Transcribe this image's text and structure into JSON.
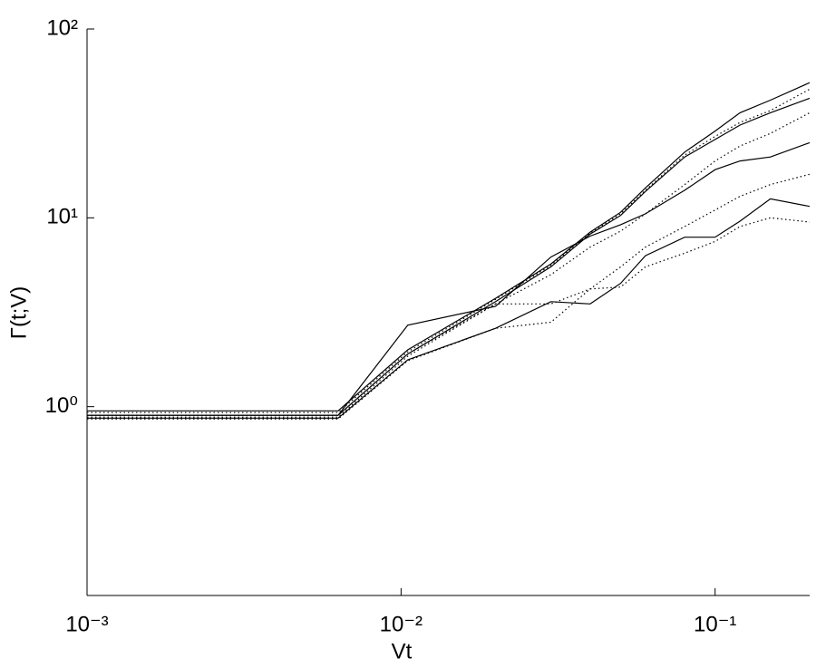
{
  "chart_data": {
    "type": "line",
    "x_label": "Vt",
    "y_label": "Γ(t;V)",
    "xscale": "log",
    "yscale": "log",
    "xlim": [
      0.001,
      0.2
    ],
    "ylim": [
      0.1,
      100
    ],
    "xticks": [
      {
        "value": 0.001,
        "label": "10⁻³"
      },
      {
        "value": 0.01,
        "label": "10⁻²"
      },
      {
        "value": 0.1,
        "label": "10⁻¹"
      }
    ],
    "yticks": [
      {
        "value": 1,
        "label": "10⁰"
      },
      {
        "value": 10,
        "label": "10¹"
      },
      {
        "value": 100,
        "label": "10²"
      }
    ],
    "x": [
      0.001,
      0.0063,
      0.0105,
      0.02,
      0.03,
      0.04,
      0.05,
      0.06,
      0.08,
      0.1,
      0.12,
      0.15,
      0.2
    ],
    "series": [
      {
        "color": "#000000",
        "style": "solid",
        "values": [
          0.95,
          0.95,
          2.0,
          3.75,
          5.7,
          8.4,
          10.7,
          14.4,
          22.3,
          28.8,
          36,
          42,
          52
        ]
      },
      {
        "color": "#000000",
        "style": "solid",
        "values": [
          0.9,
          0.9,
          1.9,
          3.6,
          5.5,
          8.2,
          10.3,
          13.8,
          21,
          26,
          31,
          36,
          43
        ]
      },
      {
        "color": "#000000",
        "style": "solid",
        "values": [
          0.9,
          0.9,
          2.7,
          3.4,
          6.2,
          8,
          9.2,
          10.5,
          14,
          18,
          20,
          21,
          25
        ]
      },
      {
        "color": "#000000",
        "style": "solid",
        "values": [
          0.87,
          0.87,
          1.77,
          2.6,
          3.6,
          3.5,
          4.5,
          6.3,
          7.9,
          7.9,
          9.6,
          12.6,
          11.5
        ]
      },
      {
        "color": "#000000",
        "style": "dotted",
        "values": [
          0.93,
          0.93,
          1.95,
          3.7,
          5.6,
          8.3,
          10.5,
          14,
          21.5,
          27,
          32,
          37,
          48
        ]
      },
      {
        "color": "#000000",
        "style": "dotted",
        "values": [
          0.9,
          0.9,
          1.9,
          3.5,
          5,
          7,
          8.5,
          10.5,
          15,
          20,
          24,
          28,
          36
        ]
      },
      {
        "color": "#000000",
        "style": "dotted",
        "values": [
          0.88,
          0.88,
          1.85,
          3.5,
          3.5,
          4.2,
          5.5,
          7,
          9,
          11,
          13,
          15,
          17
        ]
      },
      {
        "color": "#000000",
        "style": "dotted",
        "values": [
          0.86,
          0.86,
          1.75,
          2.6,
          2.8,
          4.2,
          4.3,
          5.5,
          6.5,
          7.5,
          9,
          10,
          9.5
        ]
      }
    ]
  }
}
